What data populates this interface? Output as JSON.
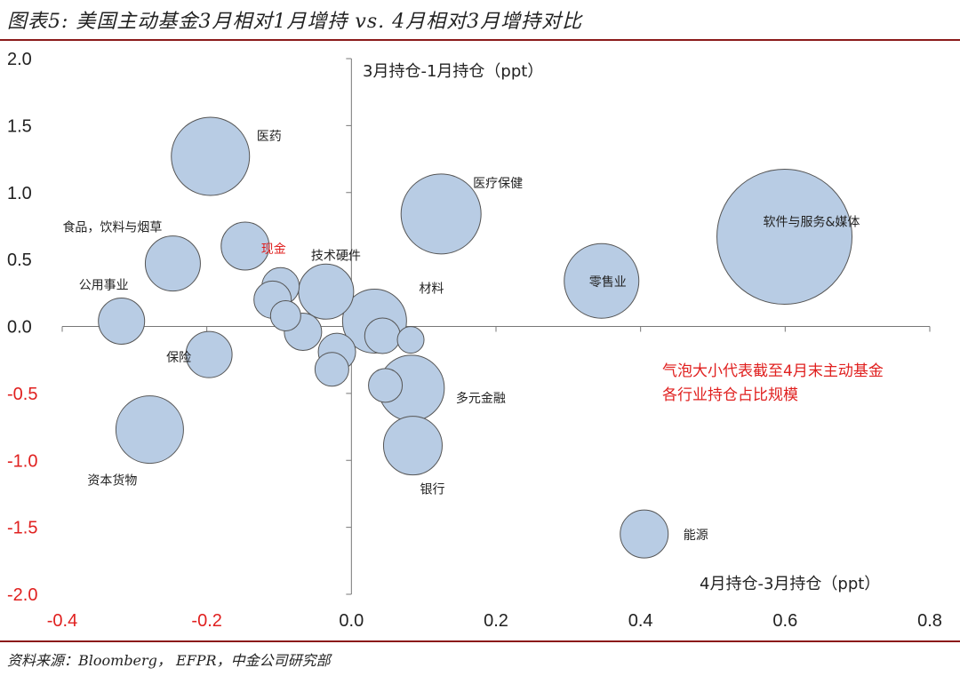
{
  "title": "图表5: 美国主动基金3月相对1月增持 vs. 4月相对3月增持对比",
  "source": "资料来源：Bloomberg， EFPR，中金公司研究部",
  "colors": {
    "bubble_fill": "#b8cce4",
    "bubble_stroke": "#555555",
    "negative": "#e0201f",
    "rule": "#8b1a1a"
  },
  "chart_data": {
    "type": "bubble",
    "title": "图表5: 美国主动基金3月相对1月增持 vs. 4月相对3月增持对比",
    "xlabel": "4月持仓-3月持仓（ppt）",
    "ylabel": "3月持仓-1月持仓（ppt）",
    "xlim": [
      -0.4,
      0.8
    ],
    "ylim": [
      -2.0,
      2.0
    ],
    "x_ticks": [
      "-0.4",
      "-0.2",
      "0.0",
      "0.2",
      "0.4",
      "0.6",
      "0.8"
    ],
    "y_ticks": [
      "2.0",
      "1.5",
      "1.0",
      "0.5",
      "0.0",
      "-0.5",
      "-1.0",
      "-1.5",
      "-2.0"
    ],
    "annotation": [
      "气泡大小代表截至4月末主动基金",
      "各行业持仓占比规模"
    ],
    "points": [
      {
        "label": "医药",
        "x": -0.195,
        "y": 1.27,
        "size": 44
      },
      {
        "label": "食品，饮料与烟草",
        "x": -0.247,
        "y": 0.47,
        "size": 31
      },
      {
        "label": "现金",
        "x": -0.147,
        "y": 0.6,
        "size": 27,
        "highlight": true
      },
      {
        "label": "公用事业",
        "x": -0.318,
        "y": 0.04,
        "size": 26
      },
      {
        "label": "保险",
        "x": -0.197,
        "y": -0.21,
        "size": 26
      },
      {
        "label": "资本货物",
        "x": -0.279,
        "y": -0.77,
        "size": 38
      },
      {
        "label": "技术硬件",
        "x": -0.035,
        "y": 0.26,
        "size": 31
      },
      {
        "label": "医疗保健",
        "x": 0.124,
        "y": 0.84,
        "size": 45
      },
      {
        "label": "软件与服务&媒体",
        "x": 0.599,
        "y": 0.67,
        "size": 76
      },
      {
        "label": "零售业",
        "x": 0.346,
        "y": 0.34,
        "size": 42
      },
      {
        "label": "材料",
        "x": 0.032,
        "y": 0.04,
        "size": 36
      },
      {
        "label": "多元金融",
        "x": 0.083,
        "y": -0.46,
        "size": 37
      },
      {
        "label": "银行",
        "x": 0.085,
        "y": -0.89,
        "size": 33
      },
      {
        "label": "能源",
        "x": 0.405,
        "y": -1.55,
        "size": 27
      },
      {
        "label": "",
        "x": -0.098,
        "y": 0.3,
        "size": 21
      },
      {
        "label": "",
        "x": -0.109,
        "y": 0.2,
        "size": 21
      },
      {
        "label": "",
        "x": -0.091,
        "y": 0.08,
        "size": 17
      },
      {
        "label": "",
        "x": -0.067,
        "y": -0.04,
        "size": 21
      },
      {
        "label": "",
        "x": -0.02,
        "y": -0.19,
        "size": 21
      },
      {
        "label": "",
        "x": -0.027,
        "y": -0.32,
        "size": 19
      },
      {
        "label": "",
        "x": 0.047,
        "y": -0.44,
        "size": 19
      },
      {
        "label": "",
        "x": 0.082,
        "y": -0.1,
        "size": 15
      },
      {
        "label": "",
        "x": 0.043,
        "y": -0.07,
        "size": 20
      }
    ]
  }
}
